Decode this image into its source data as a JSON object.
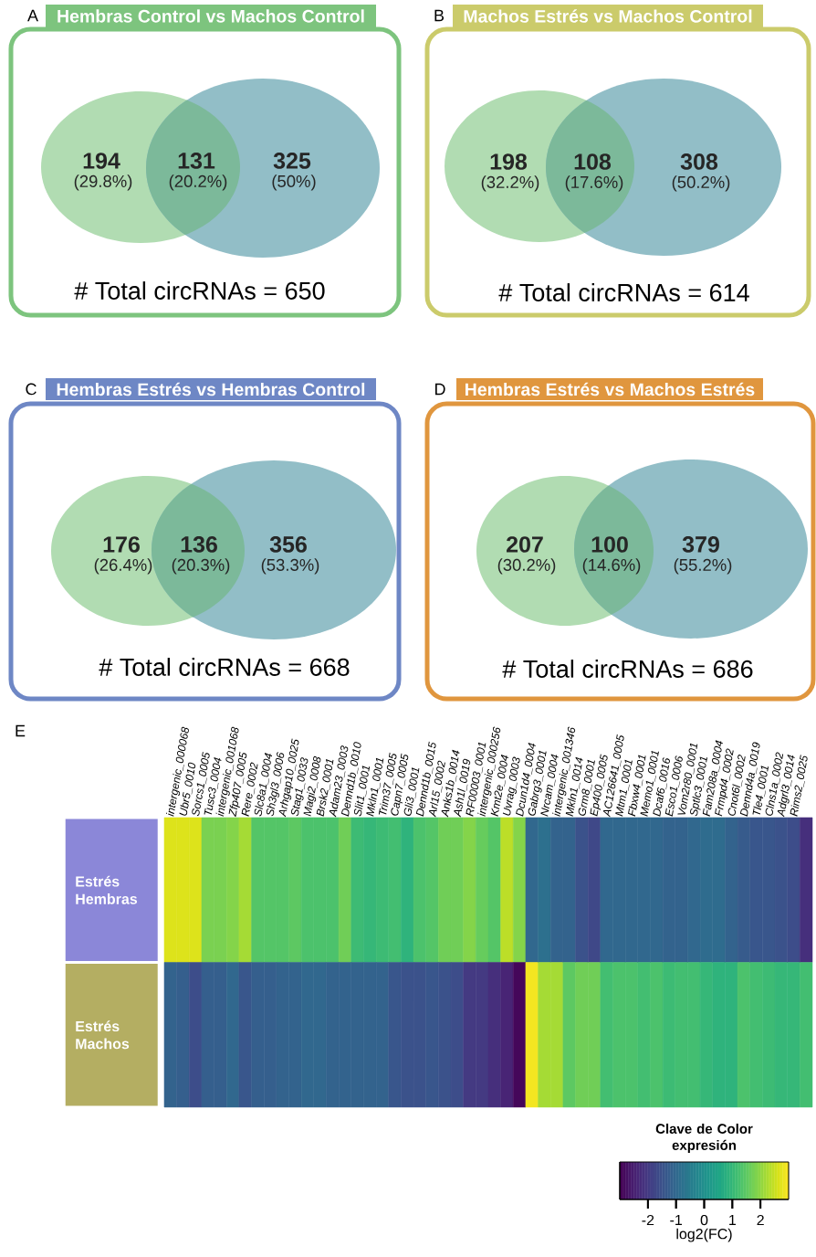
{
  "chart_data": [
    {
      "type": "other",
      "title": "Hembras Control vs Machos Control",
      "values": [
        194,
        131,
        325
      ],
      "data_labels": true,
      "colors": [
        "#b1dcb2",
        "#7cb99a",
        "#92bec7"
      ],
      "annotations": [
        "A",
        "(29.8%)",
        "(20.2%)",
        "(50%)",
        "# Total circRNAs = 650"
      ]
    },
    {
      "type": "other",
      "title": "Machos Estrés vs Machos Control",
      "values": [
        198,
        108,
        308
      ],
      "data_labels": true,
      "colors": [
        "#b1dcb2",
        "#7cb99a",
        "#92bec7"
      ],
      "annotations": [
        "B",
        "(32.2%)",
        "(17.6%)",
        "(50.2%)",
        "# Total circRNAs = 614"
      ]
    },
    {
      "type": "other",
      "title": "Hembras Estrés vs Hembras Control",
      "values": [
        176,
        136,
        356
      ],
      "data_labels": true,
      "colors": [
        "#b1dcb2",
        "#7cb99a",
        "#92bec7"
      ],
      "annotations": [
        "C",
        "(26.4%)",
        "(20.3%)",
        "(53.3%)",
        "# Total circRNAs = 668"
      ]
    },
    {
      "type": "other",
      "title": "Hembras Estrés vs Machos Estrés",
      "values": [
        207,
        100,
        379
      ],
      "data_labels": true,
      "colors": [
        "#b1dcb2",
        "#7cb99a",
        "#92bec7"
      ],
      "annotations": [
        "D",
        "(30.2%)",
        "(14.6%)",
        "(55.2%)",
        "# Total circRNAs = 686"
      ]
    },
    {
      "type": "heatmap",
      "annotations": [
        "E"
      ],
      "categories": [
        "intergenic_000068",
        "Ubr5_0010",
        "Sorcs1_0005",
        "Tusc3_0004",
        "intergenic_001068",
        "Zfp407_0005",
        "Rere_0002",
        "Slc8a1_0004",
        "Sh3gl3_0006",
        "Arhgap10_0025",
        "Stag1_0033",
        "Magi2_0008",
        "Brsk2_0001",
        "Adam23_0003",
        "Dennd1b_0010",
        "Slit1_0001",
        "Mkln1_0001",
        "Trim37_0005",
        "Capn7_0005",
        "Gli3_0001",
        "Dennd1b_0015",
        "Arl15_0002",
        "Anks1b_0014",
        "Ash1l_0019",
        "RF00003_0001",
        "intergenic_000256",
        "Kmt2e_0004",
        "Uvrag_0003",
        "Dcun1d4_0004",
        "Gabrg3_0001",
        "Nrcam_0004",
        "intergenic_001346",
        "Mkln1_0014",
        "Grm8_0001",
        "Ep400_0005",
        "AC126641_0005",
        "Mtm1_0001",
        "Fbxw4_0001",
        "Memo1_0001",
        "Dcaf6_0016",
        "Esco1_0006",
        "Vom2r80_0001",
        "Sptlc3_0001",
        "Fam208a_0004",
        "Frmpd4_0002",
        "Cnot6l_0002",
        "Dennd4a_0019",
        "Tle4_0001",
        "Clns1a_0002",
        "Adgrl3_0014",
        "Rims2_0025",
        null
      ],
      "y_categories": [
        "Estrés Hembras",
        "Estrés Machos"
      ],
      "cells": [
        [
          2.7,
          2.7,
          2.7,
          1.8,
          1.8,
          1.9,
          2.2,
          1.4,
          1.4,
          1.4,
          1.5,
          1.3,
          1.3,
          1.3,
          1.7,
          1.1,
          1.0,
          1.1,
          1.2,
          0.9,
          1.3,
          1.4,
          1.7,
          1.7,
          1.9,
          1.6,
          1.4,
          2.4,
          1.9,
          -1.0,
          -0.8,
          -1.1,
          -1.1,
          -1.5,
          -1.7,
          -1.0,
          -1.0,
          -1.0,
          -1.0,
          -1.0,
          -1.1,
          -1.1,
          -1.0,
          -0.9,
          -0.9,
          -1.1,
          -1.3,
          -1.4,
          -1.4,
          -1.5,
          -1.6,
          -2.2
        ],
        [
          -1.1,
          -1.2,
          -1.6,
          -1.2,
          -1.2,
          -1.0,
          -1.4,
          -1.2,
          -1.2,
          -1.1,
          -1.1,
          -1.0,
          -1.0,
          -1.1,
          -1.1,
          -1.1,
          -1.1,
          -1.1,
          -1.4,
          -1.5,
          -1.5,
          -1.4,
          -1.5,
          -1.6,
          -2.0,
          -2.0,
          -2.2,
          -2.4,
          -2.9,
          2.9,
          2.2,
          2.2,
          1.5,
          1.7,
          1.7,
          1.2,
          1.3,
          1.3,
          1.2,
          1.3,
          1.1,
          1.2,
          1.2,
          1.0,
          0.9,
          0.9,
          1.3,
          1.2,
          1.1,
          1.0,
          1.0,
          1.2
        ]
      ],
      "clim": [
        -3,
        3
      ],
      "cticks": [
        -2,
        -1,
        0,
        1,
        2
      ],
      "clabel": "log2(FC)",
      "legend_title": "Clave de Color expresión"
    }
  ]
}
